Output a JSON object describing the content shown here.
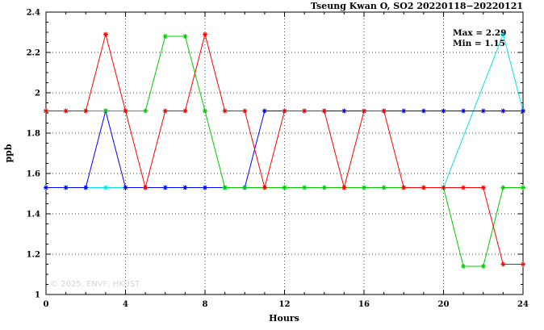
{
  "chart_data": {
    "type": "line",
    "title": "Tseung Kwan O, SO2 20220118−20220121",
    "xlabel": "Hours",
    "ylabel": "ppb",
    "xlim": [
      0,
      24
    ],
    "ylim": [
      1.0,
      2.4
    ],
    "xticks": [
      0,
      4,
      8,
      12,
      16,
      20,
      24
    ],
    "yticks": [
      1.0,
      1.2,
      1.4,
      1.6,
      1.8,
      2.0,
      2.2,
      2.4
    ],
    "grid": true,
    "legend": "none",
    "annotations": {
      "max": "Max = 2.29",
      "min": "Min = 1.15"
    },
    "watermark": "© 2025, ENVF, HKUST",
    "x": [
      0,
      1,
      2,
      3,
      4,
      5,
      6,
      7,
      8,
      9,
      10,
      11,
      12,
      13,
      14,
      15,
      16,
      17,
      18,
      19,
      20,
      21,
      22,
      23,
      24
    ],
    "series": [
      {
        "name": "cyan",
        "color": "#00e5e5",
        "values": [
          1.53,
          1.53,
          1.53,
          1.53,
          1.53,
          1.53,
          1.53,
          1.53,
          1.53,
          1.53,
          1.53,
          1.53,
          1.53,
          1.53,
          1.53,
          1.53,
          1.53,
          1.53,
          1.53,
          1.53,
          1.53,
          null,
          null,
          2.29,
          1.91
        ]
      },
      {
        "name": "blue",
        "color": "#0000ff",
        "values": [
          1.53,
          1.53,
          1.53,
          1.91,
          1.53,
          1.53,
          1.53,
          1.53,
          1.53,
          1.53,
          1.53,
          1.91,
          1.91,
          1.91,
          1.91,
          1.91,
          1.91,
          1.91,
          1.91,
          1.91,
          1.91,
          1.91,
          1.91,
          1.91,
          1.91
        ]
      },
      {
        "name": "green",
        "color": "#00cc00",
        "values": [
          1.91,
          1.91,
          1.91,
          1.91,
          1.91,
          1.91,
          2.28,
          2.28,
          1.91,
          1.53,
          1.53,
          1.53,
          1.53,
          1.53,
          1.53,
          1.53,
          1.53,
          1.53,
          1.53,
          1.53,
          1.53,
          1.14,
          1.14,
          1.53,
          1.53
        ]
      },
      {
        "name": "red",
        "color": "#ff0000",
        "values": [
          1.91,
          1.91,
          1.91,
          2.29,
          1.91,
          1.53,
          1.91,
          1.91,
          2.29,
          1.91,
          1.91,
          1.53,
          1.91,
          1.91,
          1.91,
          1.53,
          1.91,
          1.91,
          1.53,
          1.53,
          1.53,
          1.53,
          1.53,
          1.15,
          1.15
        ]
      }
    ]
  }
}
